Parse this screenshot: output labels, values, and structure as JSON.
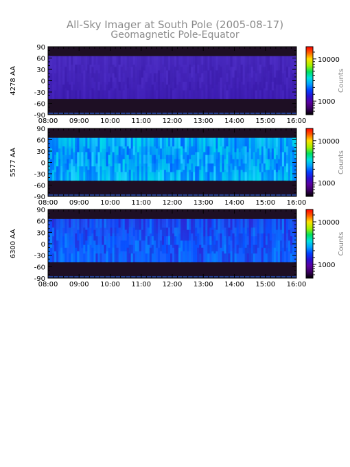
{
  "chart_data": {
    "type": "heatmap",
    "title": "All-Sky Imager at South Pole (2005-08-17)",
    "subtitle": "Geomagnetic Pole-Equator",
    "xticks": [
      "08:00",
      "09:00",
      "10:00",
      "11:00",
      "12:00",
      "13:00",
      "14:00",
      "15:00",
      "16:00"
    ],
    "xlim": [
      "08:00",
      "16:00"
    ],
    "yticks": [
      90,
      60,
      30,
      0,
      -30,
      -60,
      -90
    ],
    "ylim": [
      -90,
      90
    ],
    "colorbar_label": "Counts",
    "colorbar_ticks": [
      10000,
      1000
    ],
    "colorbar_tick_labels": [
      "10000",
      "1000"
    ],
    "panels": [
      {
        "ylabel": "4278 AA",
        "data_range_deg": [
          -48,
          65
        ],
        "intensity": "low"
      },
      {
        "ylabel": "5577 AA",
        "data_range_deg": [
          -48,
          65
        ],
        "intensity": "high"
      },
      {
        "ylabel": "6300 AA",
        "data_range_deg": [
          -48,
          65
        ],
        "intensity": "medium"
      }
    ]
  },
  "colors": {
    "title": "#8a8a8a",
    "no_data": "#1e0f24",
    "colormap": [
      "#000000",
      "#3a0060",
      "#5a00a0",
      "#2a10d0",
      "#0040ff",
      "#00a0ff",
      "#00e0e0",
      "#00e060",
      "#a0f000",
      "#ffe000",
      "#ff6000",
      "#ff0000"
    ]
  }
}
